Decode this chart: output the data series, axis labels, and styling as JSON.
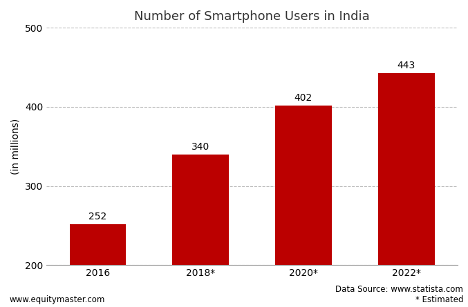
{
  "title": "Number of Smartphone Users in India",
  "categories": [
    "2016",
    "2018*",
    "2020*",
    "2022*"
  ],
  "values": [
    252,
    340,
    402,
    443
  ],
  "bar_color": "#bb0000",
  "ylabel": "(in millions)",
  "ylim": [
    200,
    500
  ],
  "yticks": [
    200,
    300,
    400,
    500
  ],
  "grid_color": "#bbbbbb",
  "background_color": "#ffffff",
  "footer_left": "www.equitymaster.com",
  "footer_right": "Data Source: www.statista.com\n* Estimated",
  "title_fontsize": 13,
  "label_fontsize": 10,
  "tick_fontsize": 10,
  "footer_fontsize": 8.5,
  "bar_width": 0.55,
  "ymin": 200
}
